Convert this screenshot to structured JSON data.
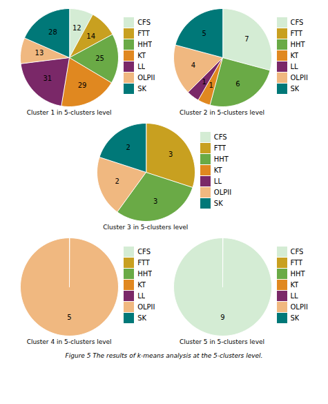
{
  "chart_data": [
    {
      "type": "pie",
      "title": "Cluster 1 in 5-clusters level",
      "categories": [
        "CFS",
        "FTT",
        "HHT",
        "KT",
        "LL",
        "OLPII",
        "SK"
      ],
      "values": [
        12,
        14,
        25,
        29,
        31,
        13,
        28
      ],
      "colors": [
        "#d4ecd4",
        "#c8a020",
        "#6aaa46",
        "#e08820",
        "#7a2868",
        "#f0b880",
        "#007878"
      ],
      "data_labels": true,
      "legend": "right"
    },
    {
      "type": "pie",
      "title": "Cluster 2 in 5-clusters level",
      "categories": [
        "CFS",
        "FTT",
        "HHT",
        "KT",
        "LL",
        "OLPII",
        "SK"
      ],
      "values": [
        7,
        0,
        6,
        1,
        1,
        4,
        5
      ],
      "colors": [
        "#d4ecd4",
        "#c8a020",
        "#6aaa46",
        "#e08820",
        "#7a2868",
        "#f0b880",
        "#007878"
      ],
      "data_labels": true,
      "legend": "right"
    },
    {
      "type": "pie",
      "title": "Cluster 3 in 5-clusters level",
      "categories": [
        "CFS",
        "FTT",
        "HHT",
        "KT",
        "LL",
        "OLPII",
        "SK"
      ],
      "values": [
        0,
        3,
        3,
        0,
        0,
        2,
        2
      ],
      "colors": [
        "#d4ecd4",
        "#c8a020",
        "#6aaa46",
        "#e08820",
        "#7a2868",
        "#f0b880",
        "#007878"
      ],
      "data_labels": true,
      "legend": "right"
    },
    {
      "type": "pie",
      "title": "Cluster 4 in 5-clusters level",
      "categories": [
        "CFS",
        "FTT",
        "HHT",
        "KT",
        "LL",
        "OLPII",
        "SK"
      ],
      "values": [
        0,
        0,
        0,
        0,
        0,
        5,
        0
      ],
      "colors": [
        "#d4ecd4",
        "#c8a020",
        "#6aaa46",
        "#e08820",
        "#7a2868",
        "#f0b880",
        "#007878"
      ],
      "data_labels": true,
      "legend": "right"
    },
    {
      "type": "pie",
      "title": "Cluster 5 in 5-clusters level",
      "categories": [
        "CFS",
        "FTT",
        "HHT",
        "KT",
        "LL",
        "OLPII",
        "SK"
      ],
      "values": [
        9,
        0,
        0,
        0,
        0,
        0,
        0
      ],
      "colors": [
        "#d4ecd4",
        "#c8a020",
        "#6aaa46",
        "#e08820",
        "#7a2868",
        "#f0b880",
        "#007878"
      ],
      "data_labels": true,
      "legend": "right"
    }
  ],
  "caption": "Figure 5  The results of k-means analysis at the 5-clusters level."
}
